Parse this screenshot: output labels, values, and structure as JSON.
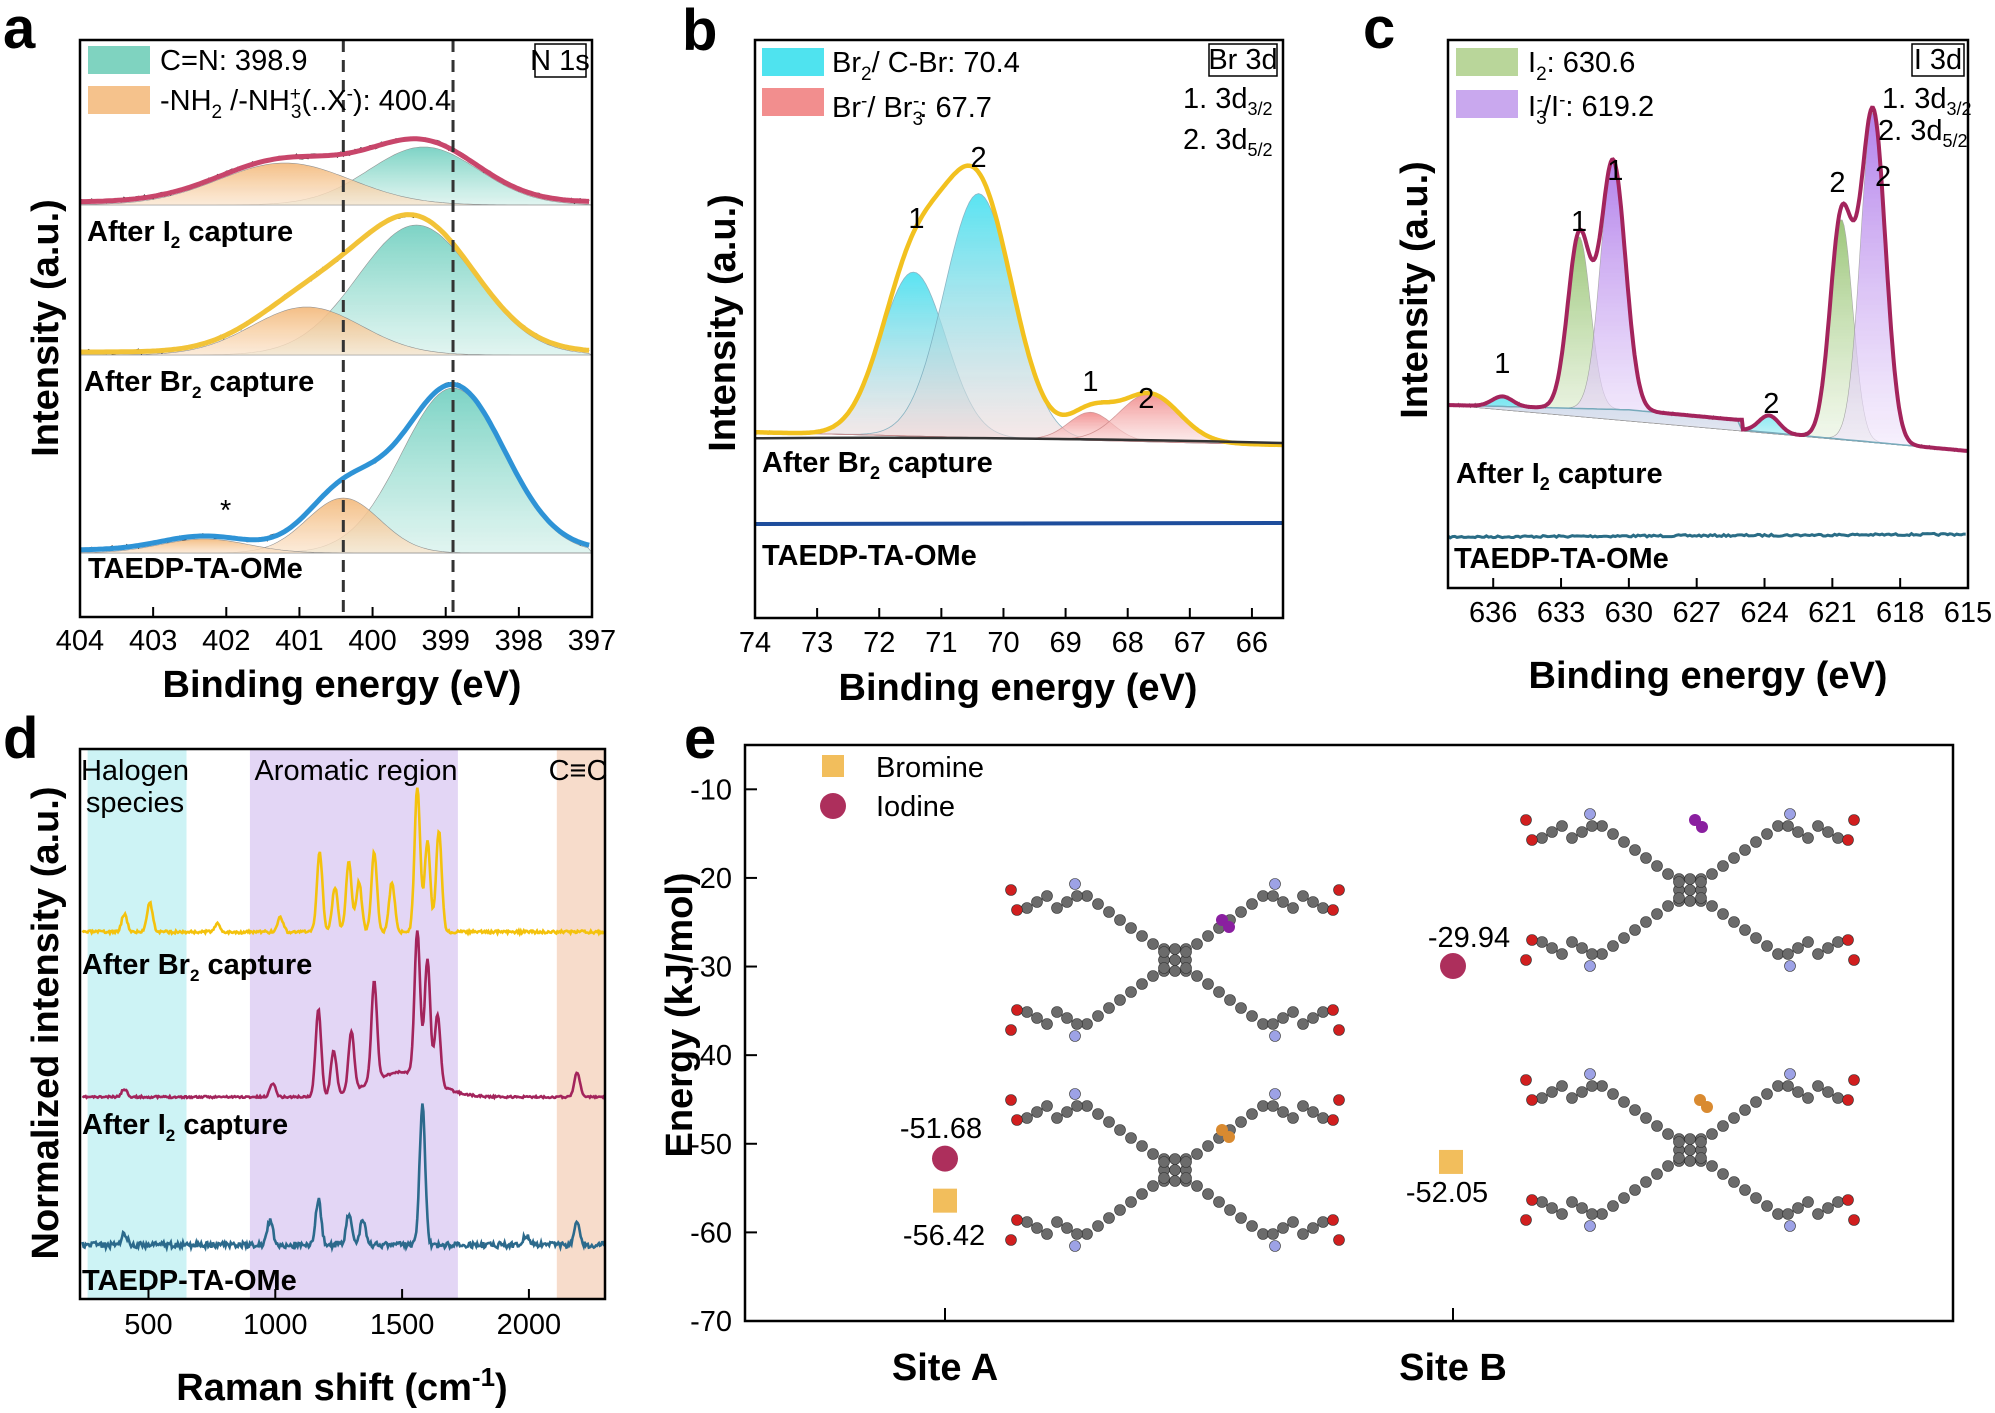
{
  "panels": {
    "a": {
      "label": "a",
      "tag": "N 1s",
      "xlabel": "Binding energy (eV)",
      "ylabel": "Intensity (a.u.)",
      "legend": [
        {
          "label": "C=N: 398.9",
          "color": "#7fd3c0"
        },
        {
          "label": "-NH",
          "sub": "2",
          "label2": " /-NH",
          "sup": "+",
          "sub2": "3",
          "label3": "(..X",
          "sup2": "-",
          "label4": "): 400.4",
          "color": "#f5c28c"
        }
      ],
      "traces": [
        {
          "base": "After I",
          "sub": "2",
          "rest": " capture"
        },
        {
          "base": "After Br",
          "sub": "2",
          "rest": " capture"
        },
        {
          "base": "TAEDP-TA-OMe",
          "sub": "",
          "rest": ""
        }
      ],
      "marker": "*"
    },
    "b": {
      "label": "b",
      "tag": "Br 3d",
      "xlabel": "Binding energy (eV)",
      "ylabel": "Intensity (a.u.)",
      "legend": [
        {
          "label": "Br",
          "sub": "2",
          "rest": "/ C-Br: 70.4",
          "color": "#4fe3ef"
        },
        {
          "label": "Br",
          "sup": "-",
          "rest": "/ Br",
          "sub2": "3",
          "sup2": "-",
          "rest2": ": 67.7",
          "color": "#f28e8e"
        }
      ],
      "notes": [
        {
          "t": "1. 3d",
          "sub": "3/2"
        },
        {
          "t": "2. 3d",
          "sub": "5/2"
        }
      ],
      "traces": [
        {
          "base": "After Br",
          "sub": "2",
          "rest": " capture"
        },
        {
          "base": "TAEDP-TA-OMe",
          "sub": "",
          "rest": ""
        }
      ]
    },
    "c": {
      "label": "c",
      "tag": "I 3d",
      "xlabel": "Binding energy (eV)",
      "ylabel": "Intensity (a.u.)",
      "legend": [
        {
          "label": "I",
          "sub": "2",
          "rest": ": 630.6",
          "color": "#b9d69a"
        },
        {
          "label": "I",
          "sub": "3",
          "sup": "-",
          "rest": "/I",
          "sup2": "-",
          "rest2": ": 619.2",
          "color": "#c9a8ee"
        }
      ],
      "notes": [
        {
          "t": "1. 3d",
          "sub": "3/2"
        },
        {
          "t": "2. 3d",
          "sub": "5/2"
        }
      ],
      "traces": [
        {
          "base": "After I",
          "sub": "2",
          "rest": " capture"
        },
        {
          "base": "TAEDP-TA-OMe",
          "sub": "",
          "rest": ""
        }
      ]
    },
    "d": {
      "label": "d",
      "xlabel": "Raman shift (cm",
      "xlabel_sup": "-1",
      "xlabel_end": ")",
      "ylabel": "Normalized intensity (a.u.)",
      "regions": [
        {
          "label": "Halogen species",
          "color": "#cdf3f5"
        },
        {
          "label": "Aromatic region",
          "color": "#e3d6f5"
        },
        {
          "label": "C≡C",
          "color": "#f7dccb"
        }
      ],
      "traces": [
        {
          "base": "After Br",
          "sub": "2",
          "rest": " capture"
        },
        {
          "base": "After I",
          "sub": "2",
          "rest": " capture"
        },
        {
          "base": "TAEDP-TA-OMe",
          "sub": "",
          "rest": ""
        }
      ]
    },
    "e": {
      "label": "e",
      "ylabel": "Energy (kJ/mol)",
      "legend": [
        {
          "label": "Bromine",
          "color": "#f2be5c"
        },
        {
          "label": "Iodine",
          "color": "#ad2f5c"
        }
      ],
      "value_labels": [
        "-51.68",
        "-56.42",
        "-29.94",
        "-52.05"
      ]
    }
  },
  "chart_data": [
    {
      "panel": "a",
      "type": "line",
      "x_unit": "eV",
      "xlim": [
        404,
        397
      ],
      "x_reversed": true,
      "x_ticks": [
        404,
        403,
        402,
        401,
        400,
        399,
        398,
        397
      ],
      "dashed_lines_x": [
        400.4,
        398.9
      ],
      "series": [
        {
          "name": "After I2 capture",
          "color": "#c8466b",
          "fit_components": [
            {
              "label": "C=N",
              "center": 399.3,
              "fwhm": 1.9
            },
            {
              "label": "-NH2/-NH3+",
              "center": 401.2,
              "fwhm": 2.2
            }
          ]
        },
        {
          "name": "After Br2 capture",
          "color": "#f2c338",
          "fit_components": [
            {
              "label": "C=N",
              "center": 399.4,
              "fwhm": 2.0
            },
            {
              "label": "-NH2/-NH3+",
              "center": 400.9,
              "fwhm": 1.9
            }
          ]
        },
        {
          "name": "TAEDP-TA-OMe",
          "color": "#2e93d6",
          "fit_components": [
            {
              "label": "C=N",
              "center": 398.9,
              "fwhm": 1.8
            },
            {
              "label": "-NH2/-NH3+",
              "center": 400.4,
              "fwhm": 1.3
            }
          ]
        }
      ]
    },
    {
      "panel": "b",
      "type": "line",
      "x_unit": "eV",
      "xlim": [
        74,
        65.5
      ],
      "x_reversed": true,
      "x_ticks": [
        74,
        73,
        72,
        71,
        70,
        69,
        68,
        67,
        66
      ],
      "series": [
        {
          "name": "After Br2 capture",
          "color": "#f2c11f",
          "peaks": [
            {
              "label": "1",
              "x": 71.4,
              "component": "Br2/C-Br"
            },
            {
              "label": "2",
              "x": 70.4,
              "component": "Br2/C-Br"
            },
            {
              "label": "1",
              "x": 68.6,
              "component": "Br-/Br3-"
            },
            {
              "label": "2",
              "x": 67.7,
              "component": "Br-/Br3-"
            }
          ]
        },
        {
          "name": "TAEDP-TA-OMe",
          "color": "#1e4d9c"
        }
      ]
    },
    {
      "panel": "c",
      "type": "line",
      "x_unit": "eV",
      "xlim": [
        638,
        615
      ],
      "x_reversed": true,
      "x_ticks": [
        636,
        633,
        630,
        627,
        624,
        621,
        618,
        615
      ],
      "series": [
        {
          "name": "After I2 capture",
          "color": "#a3245c",
          "peaks": [
            {
              "label": "1",
              "x": 635.6
            },
            {
              "label": "1",
              "x": 632.2
            },
            {
              "label": "1",
              "x": 630.6
            },
            {
              "label": "2",
              "x": 623.7
            },
            {
              "label": "2",
              "x": 620.6
            },
            {
              "label": "2",
              "x": 619.2
            }
          ]
        },
        {
          "name": "TAEDP-TA-OMe",
          "color": "#2a6d86"
        }
      ]
    },
    {
      "panel": "d",
      "type": "line",
      "x_unit": "cm-1",
      "xlim": [
        230,
        2300
      ],
      "x_ticks": [
        500,
        1000,
        1500,
        2000
      ],
      "regions_x": [
        [
          260,
          650
        ],
        [
          900,
          1720
        ],
        [
          2110,
          2300
        ]
      ],
      "series": [
        {
          "name": "After Br2 capture",
          "color": "#f4c20d",
          "peaks_x": [
            405,
            505,
            770,
            1020,
            1175,
            1235,
            1290,
            1330,
            1390,
            1460,
            1560,
            1600,
            1645
          ]
        },
        {
          "name": "After I2 capture",
          "color": "#a3245c",
          "peaks_x": [
            405,
            990,
            1170,
            1230,
            1300,
            1390,
            1560,
            1600,
            1640,
            2190
          ]
        },
        {
          "name": "TAEDP-TA-OMe",
          "color": "#2c6a8c",
          "peaks_x": [
            405,
            980,
            1170,
            1290,
            1345,
            1580,
            1990,
            2190
          ]
        }
      ]
    },
    {
      "panel": "e",
      "type": "scatter",
      "categories": [
        "Site A",
        "Site B"
      ],
      "ylim": [
        -70,
        -5
      ],
      "y_ticks": [
        -10,
        -20,
        -30,
        -40,
        -50,
        -60,
        -70
      ],
      "series": [
        {
          "name": "Bromine",
          "marker": "square",
          "values": [
            -56.42,
            -52.05
          ]
        },
        {
          "name": "Iodine",
          "marker": "circle",
          "values": [
            -51.68,
            -29.94
          ]
        }
      ]
    }
  ]
}
